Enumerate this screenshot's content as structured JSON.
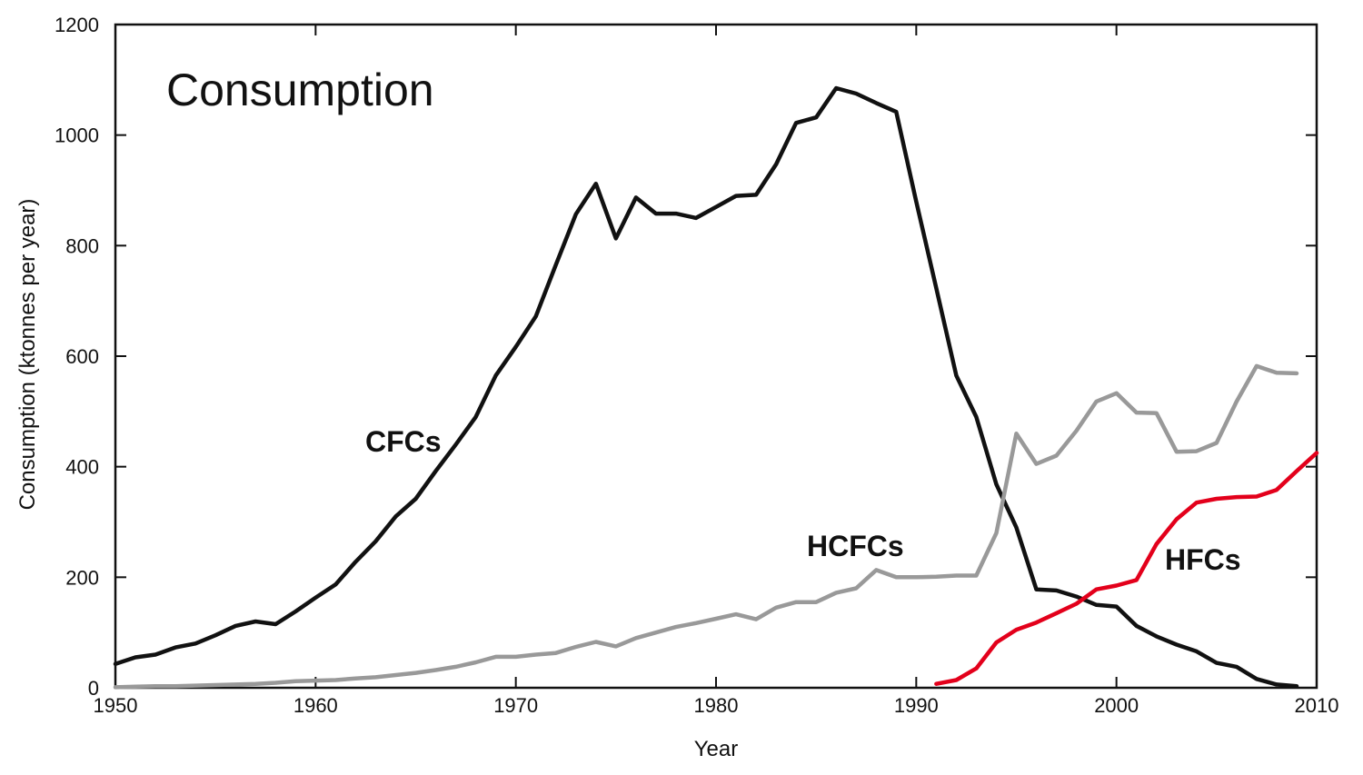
{
  "chart_data": {
    "type": "line",
    "title": "Consumption",
    "xlabel": "Year",
    "ylabel": "Consumption (ktonnes per year)",
    "xlim": [
      1950,
      2010
    ],
    "ylim": [
      0,
      1200
    ],
    "xticks": [
      1950,
      1960,
      1970,
      1980,
      1990,
      2000,
      2010
    ],
    "yticks": [
      0,
      200,
      400,
      600,
      800,
      1000,
      1200
    ],
    "grid": false,
    "legend": "none (series labeled directly on the plot)",
    "series": [
      {
        "name": "CFCs",
        "color": "#111111",
        "x": [
          1950,
          1951,
          1952,
          1953,
          1954,
          1955,
          1956,
          1957,
          1958,
          1959,
          1960,
          1961,
          1962,
          1963,
          1964,
          1965,
          1966,
          1967,
          1968,
          1969,
          1970,
          1971,
          1972,
          1973,
          1974,
          1975,
          1976,
          1977,
          1978,
          1979,
          1980,
          1981,
          1982,
          1983,
          1984,
          1985,
          1986,
          1987,
          1988,
          1989,
          1990,
          1991,
          1992,
          1993,
          1994,
          1995,
          1996,
          1997,
          1998,
          1999,
          2000,
          2001,
          2002,
          2003,
          2004,
          2005,
          2006,
          2007,
          2008,
          2009
        ],
        "y": [
          43,
          55,
          60,
          73,
          80,
          95,
          112,
          120,
          115,
          138,
          163,
          187,
          228,
          265,
          310,
          342,
          392,
          440,
          490,
          565,
          617,
          672,
          765,
          857,
          912,
          813,
          887,
          858,
          858,
          850,
          870,
          890,
          892,
          947,
          1022,
          1032,
          1085,
          1075,
          1058,
          1042,
          880,
          723,
          565,
          490,
          368,
          290,
          178,
          176,
          165,
          150,
          147,
          112,
          93,
          78,
          66,
          45,
          38,
          16,
          6,
          3
        ]
      },
      {
        "name": "HCFCs",
        "color": "#999999",
        "x": [
          1950,
          1951,
          1952,
          1953,
          1954,
          1955,
          1956,
          1957,
          1958,
          1959,
          1960,
          1961,
          1962,
          1963,
          1964,
          1965,
          1966,
          1967,
          1968,
          1969,
          1970,
          1971,
          1972,
          1973,
          1974,
          1975,
          1976,
          1977,
          1978,
          1979,
          1980,
          1981,
          1982,
          1983,
          1984,
          1985,
          1986,
          1987,
          1988,
          1989,
          1990,
          1991,
          1992,
          1993,
          1994,
          1995,
          1996,
          1997,
          1998,
          1999,
          2000,
          2001,
          2002,
          2003,
          2004,
          2005,
          2006,
          2007,
          2008,
          2009
        ],
        "y": [
          1,
          2,
          3,
          3,
          4,
          5,
          6,
          7,
          9,
          12,
          13,
          14,
          17,
          19,
          23,
          27,
          32,
          38,
          46,
          56,
          56,
          60,
          63,
          74,
          83,
          75,
          90,
          100,
          110,
          117,
          125,
          133,
          124,
          145,
          155,
          155,
          172,
          180,
          213,
          200,
          200,
          201,
          203,
          203,
          280,
          460,
          405,
          420,
          465,
          518,
          533,
          498,
          497,
          427,
          428,
          443,
          518,
          582,
          570,
          569
        ]
      },
      {
        "name": "HFCs",
        "color": "#e3001b",
        "x": [
          1991,
          1992,
          1993,
          1994,
          1995,
          1996,
          1997,
          1998,
          1999,
          2000,
          2001,
          2002,
          2003,
          2004,
          2005,
          2006,
          2007,
          2008,
          2009,
          2010
        ],
        "y": [
          7,
          14,
          35,
          82,
          105,
          118,
          135,
          152,
          178,
          185,
          195,
          260,
          305,
          335,
          342,
          345,
          346,
          358,
          392,
          425
        ]
      }
    ]
  }
}
